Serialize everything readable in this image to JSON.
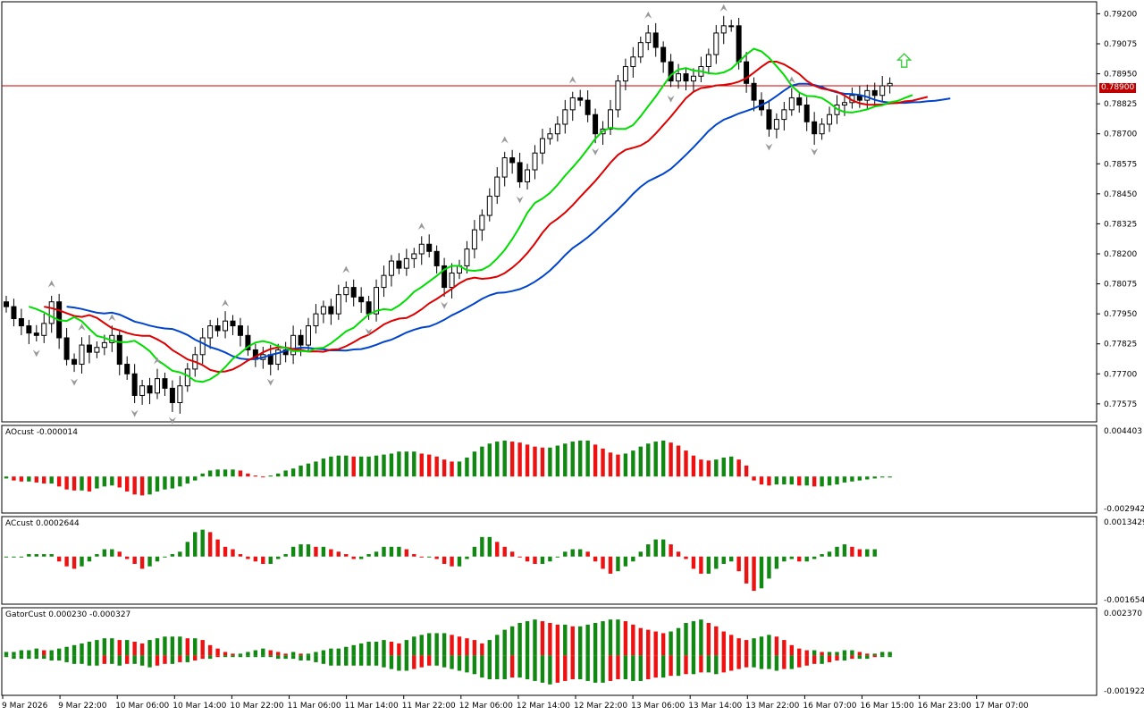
{
  "colors": {
    "bull_body": "#ffffff",
    "bear_body": "#000000",
    "candle_outline": "#000000",
    "alligator_lips": "#00dd00",
    "alligator_teeth": "#dd0000",
    "alligator_jaw": "#0044cc",
    "histogram_up": "#118811",
    "histogram_down": "#ee1111",
    "price_line": "#cc0000",
    "fractal": "#999999",
    "signal_arrow": "#44cc44",
    "grid": "#000000"
  },
  "panes": {
    "ao": {
      "label": "AOcust -0.000014",
      "ymax_label": "0.004403",
      "ymin_label": "-0.002942"
    },
    "ac": {
      "label": "ACcust 0.0002644",
      "ymax_label": "0.0013429",
      "ymin_label": "-0.0016545"
    },
    "gator": {
      "label": "GatorCust 0.000230 -0.000327",
      "ymax_label": "0.002370",
      "ymin_label": "-0.001922"
    }
  },
  "current_price_label": "0.78900",
  "time_labels": [
    "9 Mar 2026",
    "9 Mar 22:00",
    "10 Mar 06:00",
    "10 Mar 14:00",
    "10 Mar 22:00",
    "11 Mar 06:00",
    "11 Mar 14:00",
    "11 Mar 22:00",
    "12 Mar 06:00",
    "12 Mar 14:00",
    "12 Mar 22:00",
    "13 Mar 06:00",
    "13 Mar 14:00",
    "13 Mar 22:00",
    "16 Mar 07:00",
    "16 Mar 15:00",
    "16 Mar 23:00",
    "17 Mar 07:00"
  ],
  "chart_data": [
    {
      "type": "candlestick",
      "price_axis_ticks": [
        "0.79200",
        "0.79075",
        "0.78950",
        "0.78825",
        "0.78700",
        "0.78575",
        "0.78450",
        "0.78325",
        "0.78200",
        "0.78075",
        "0.77950",
        "0.77825",
        "0.77700",
        "0.77575"
      ],
      "ylim": [
        0.775,
        0.7925
      ],
      "current_price": 0.789,
      "close": [
        0.7798,
        0.7793,
        0.779,
        0.7787,
        0.7786,
        0.7791,
        0.78,
        0.7785,
        0.7776,
        0.7774,
        0.7782,
        0.7779,
        0.7781,
        0.7783,
        0.7786,
        0.7774,
        0.777,
        0.7761,
        0.7765,
        0.7762,
        0.7768,
        0.7764,
        0.7758,
        0.7765,
        0.7772,
        0.7778,
        0.7785,
        0.779,
        0.7788,
        0.7792,
        0.779,
        0.7786,
        0.778,
        0.7776,
        0.7778,
        0.7774,
        0.778,
        0.7778,
        0.7786,
        0.7782,
        0.779,
        0.7795,
        0.7798,
        0.7795,
        0.7803,
        0.7806,
        0.7802,
        0.78,
        0.7795,
        0.7806,
        0.7811,
        0.7817,
        0.7814,
        0.7818,
        0.782,
        0.7824,
        0.7821,
        0.7815,
        0.7806,
        0.7812,
        0.7815,
        0.7822,
        0.783,
        0.7836,
        0.7844,
        0.7852,
        0.786,
        0.7858,
        0.785,
        0.7855,
        0.7862,
        0.7868,
        0.787,
        0.7874,
        0.788,
        0.7885,
        0.7884,
        0.7878,
        0.787,
        0.7872,
        0.788,
        0.7892,
        0.7898,
        0.7902,
        0.7908,
        0.7912,
        0.7906,
        0.79,
        0.7892,
        0.7895,
        0.7892,
        0.7894,
        0.7898,
        0.7903,
        0.7912,
        0.7915,
        0.7915,
        0.79,
        0.7891,
        0.7884,
        0.788,
        0.7872,
        0.7876,
        0.788,
        0.7885,
        0.7882,
        0.7875,
        0.787,
        0.7874,
        0.7878,
        0.7882,
        0.7883,
        0.7886,
        0.7884,
        0.7888,
        0.7886,
        0.789,
        0.7891
      ]
    },
    {
      "type": "bar",
      "name": "AOcust",
      "ylim": [
        -0.002942,
        0.004403
      ],
      "values": [
        -0.0002,
        -0.0004,
        -0.0005,
        -0.0005,
        -0.0006,
        -0.0007,
        -0.0007,
        -0.001,
        -0.0013,
        -0.0014,
        -0.0014,
        -0.0015,
        -0.0012,
        -0.001,
        -0.0009,
        -0.0011,
        -0.0015,
        -0.0018,
        -0.0019,
        -0.0018,
        -0.0015,
        -0.0013,
        -0.0012,
        -0.001,
        -0.0007,
        -0.0004,
        0.0003,
        0.0006,
        0.0007,
        0.0007,
        0.0007,
        0.0006,
        0.0003,
        0.0001,
        0.0,
        0.0001,
        0.0003,
        0.0006,
        0.0008,
        0.0011,
        0.0013,
        0.0015,
        0.0018,
        0.002,
        0.0021,
        0.0021,
        0.002,
        0.002,
        0.002,
        0.0021,
        0.0022,
        0.0023,
        0.0025,
        0.0025,
        0.0025,
        0.0023,
        0.0022,
        0.002,
        0.0017,
        0.0015,
        0.0015,
        0.0019,
        0.0025,
        0.003,
        0.0033,
        0.0035,
        0.0036,
        0.0035,
        0.0034,
        0.0032,
        0.003,
        0.0029,
        0.0029,
        0.0031,
        0.0033,
        0.0035,
        0.0036,
        0.0036,
        0.0032,
        0.0028,
        0.0024,
        0.0022,
        0.0023,
        0.0026,
        0.003,
        0.0033,
        0.0035,
        0.0036,
        0.0034,
        0.0031,
        0.0026,
        0.0021,
        0.0017,
        0.0016,
        0.0017,
        0.0019,
        0.002,
        0.0017,
        0.0011,
        -0.0004,
        -0.0008,
        -0.0009,
        -0.0008,
        -0.0008,
        -0.0008,
        -0.0009,
        -0.0009,
        -0.001,
        -0.001,
        -0.0009,
        -0.0008,
        -0.0006,
        -0.0005,
        -0.0004,
        -0.0003,
        -0.0002,
        -0.0001,
        -0.0001
      ]
    },
    {
      "type": "bar",
      "name": "ACcust",
      "ylim": [
        -0.0016545,
        0.0013429
      ],
      "values": [
        0.0,
        0.0,
        0.0,
        0.0001,
        0.0001,
        0.0001,
        0.0001,
        -0.0002,
        -0.0004,
        -0.0005,
        -0.0004,
        -0.0002,
        0.0001,
        0.0003,
        0.0003,
        0.0002,
        -0.0001,
        -0.0003,
        -0.0005,
        -0.0004,
        -0.0002,
        0.0,
        0.0001,
        0.0002,
        0.0006,
        0.001,
        0.0011,
        0.001,
        0.0007,
        0.0004,
        0.0003,
        0.0001,
        -0.0001,
        -0.0002,
        -0.0003,
        -0.0003,
        -0.0001,
        0.0001,
        0.0004,
        0.0005,
        0.0005,
        0.0004,
        0.0004,
        0.0003,
        0.0002,
        0.0001,
        -0.0001,
        -0.0001,
        0.0001,
        0.0002,
        0.0004,
        0.0004,
        0.0004,
        0.0003,
        0.0001,
        0.0,
        0.0,
        -0.0001,
        -0.0003,
        -0.0004,
        -0.0004,
        -0.0001,
        0.0004,
        0.0008,
        0.0008,
        0.0006,
        0.0004,
        0.0002,
        0.0,
        -0.0002,
        -0.0003,
        -0.0003,
        -0.0002,
        0.0,
        0.0002,
        0.0003,
        0.0003,
        0.0002,
        -0.0002,
        -0.0005,
        -0.0007,
        -0.0006,
        -0.0004,
        -0.0002,
        0.0002,
        0.0005,
        0.0007,
        0.0007,
        0.0005,
        0.0002,
        -0.0001,
        -0.0005,
        -0.0007,
        -0.0007,
        -0.0005,
        -0.0003,
        -0.0002,
        -0.0006,
        -0.0011,
        -0.0014,
        -0.0013,
        -0.0009,
        -0.0005,
        -0.0002,
        -0.0001,
        -0.0002,
        -0.0002,
        -0.0001,
        0.0001,
        0.0002,
        0.0004,
        0.0005,
        0.0004,
        0.0003,
        0.0003,
        0.0003
      ]
    },
    {
      "type": "bar",
      "name": "GatorCust",
      "ylim": [
        -0.001922,
        0.00237
      ],
      "upper": [
        0.0002,
        0.0002,
        0.0003,
        0.0003,
        0.0004,
        0.0003,
        0.0003,
        0.0004,
        0.0005,
        0.0006,
        0.0007,
        0.0008,
        0.0009,
        0.001,
        0.001,
        0.0009,
        0.0009,
        0.0008,
        0.0007,
        0.0009,
        0.001,
        0.0011,
        0.0011,
        0.0011,
        0.001,
        0.001,
        0.0009,
        0.0006,
        0.0004,
        0.0002,
        0.0001,
        0.0001,
        0.0002,
        0.0003,
        0.0004,
        0.0003,
        0.0002,
        0.0001,
        0.0002,
        0.0001,
        0.0001,
        0.0002,
        0.0003,
        0.0004,
        0.0004,
        0.0005,
        0.0006,
        0.0007,
        0.0008,
        0.0008,
        0.0009,
        0.0008,
        0.0007,
        0.0009,
        0.0011,
        0.0012,
        0.0013,
        0.0013,
        0.0013,
        0.0012,
        0.0011,
        0.001,
        0.0009,
        0.0007,
        0.0009,
        0.0012,
        0.0015,
        0.0017,
        0.0019,
        0.002,
        0.0021,
        0.002,
        0.0019,
        0.0018,
        0.0018,
        0.0017,
        0.0017,
        0.0018,
        0.0019,
        0.002,
        0.0021,
        0.0021,
        0.002,
        0.0018,
        0.0016,
        0.0015,
        0.0014,
        0.0013,
        0.0014,
        0.0016,
        0.0019,
        0.002,
        0.0021,
        0.0019,
        0.0017,
        0.0014,
        0.0012,
        0.001,
        0.0009,
        0.001,
        0.0011,
        0.0012,
        0.0011,
        0.0009,
        0.0006,
        0.0004,
        0.0003,
        0.0003,
        0.0002,
        0.0002,
        0.0002,
        0.0003,
        0.0003,
        0.0002,
        0.0001,
        0.0001,
        0.0002,
        0.0002
      ],
      "lower": [
        -0.0001,
        -0.0002,
        -0.0002,
        -0.0002,
        -0.0002,
        -0.0002,
        -0.0003,
        -0.0003,
        -0.0004,
        -0.0005,
        -0.0005,
        -0.0006,
        -0.0006,
        -0.0005,
        -0.0005,
        -0.0006,
        -0.0005,
        -0.0005,
        -0.0006,
        -0.0007,
        -0.0006,
        -0.0005,
        -0.0005,
        -0.0004,
        -0.0004,
        -0.0003,
        -0.0002,
        -0.0002,
        -0.0001,
        -0.0001,
        -0.0001,
        -0.0001,
        -0.0001,
        -0.0001,
        -0.0001,
        -0.0001,
        -0.0002,
        -0.0002,
        -0.0002,
        -0.0003,
        -0.0003,
        -0.0004,
        -0.0005,
        -0.0006,
        -0.0006,
        -0.0006,
        -0.0006,
        -0.0006,
        -0.0006,
        -0.0006,
        -0.0007,
        -0.0008,
        -0.0009,
        -0.0009,
        -0.0008,
        -0.0007,
        -0.0006,
        -0.0006,
        -0.0007,
        -0.0008,
        -0.0009,
        -0.001,
        -0.0011,
        -0.0013,
        -0.0014,
        -0.0014,
        -0.0014,
        -0.0013,
        -0.0013,
        -0.0014,
        -0.0015,
        -0.0016,
        -0.0017,
        -0.0016,
        -0.0015,
        -0.0014,
        -0.0014,
        -0.0015,
        -0.0016,
        -0.0016,
        -0.0015,
        -0.0014,
        -0.0014,
        -0.0015,
        -0.0015,
        -0.0014,
        -0.0013,
        -0.0013,
        -0.0012,
        -0.0012,
        -0.0011,
        -0.0011,
        -0.001,
        -0.001,
        -0.0011,
        -0.001,
        -0.0009,
        -0.0008,
        -0.0007,
        -0.0007,
        -0.0008,
        -0.0008,
        -0.0009,
        -0.0008,
        -0.0008,
        -0.0007,
        -0.0006,
        -0.0005,
        -0.0005,
        -0.0004,
        -0.0003,
        -0.0003,
        -0.0002,
        -0.0002,
        -0.0002,
        -0.0001,
        -0.0001,
        -0.0001
      ]
    }
  ]
}
